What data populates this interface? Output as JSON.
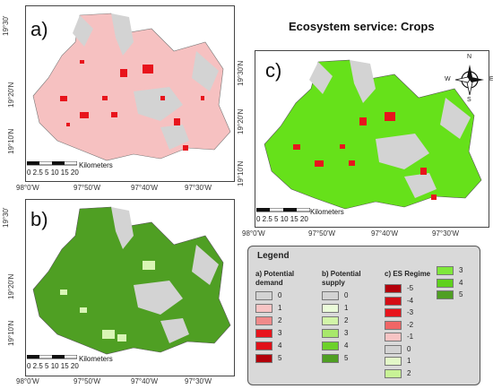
{
  "title": "Ecosystem service: Crops",
  "panels": {
    "a": {
      "label": "a)",
      "lat_ticks": [
        "19°30'",
        "19°20'N",
        "19°10'N"
      ],
      "lon_ticks": [
        "98°0'W",
        "97°50'W",
        "97°40'W",
        "97°30'W"
      ]
    },
    "b": {
      "label": "b)",
      "lat_ticks": [
        "19°30'",
        "19°20'N",
        "19°10'N"
      ],
      "lon_ticks": [
        "98°0'W",
        "97°50'W",
        "97°40'W",
        "97°30'W"
      ]
    },
    "c": {
      "label": "c)",
      "lat_ticks": [
        "19°30'N",
        "19°20'N",
        "19°10'N"
      ],
      "lon_ticks": [
        "98°0'W",
        "97°50'W",
        "97°40'W",
        "97°30'W"
      ]
    }
  },
  "scalebar": {
    "ticks": "0 2.5 5    10    15    20",
    "unit": "Kilometers"
  },
  "north_arrow": {
    "n": "N",
    "s": "S",
    "e": "E",
    "w": "W"
  },
  "colors": {
    "map_gray": "#d3d3d3",
    "demand_fill": "#f6c1c1",
    "demand_hot": "#e8141c",
    "supply_fill": "#4f9f23",
    "supply_light": "#d9f5b5",
    "regime_fill": "#66e11a",
    "regime_hot": "#e8141c"
  },
  "legend": {
    "title": "Legend",
    "demand": {
      "header": "a) Potential demand",
      "items": [
        {
          "label": "0",
          "color": "#d3d3d3"
        },
        {
          "label": "1",
          "color": "#f7c4c4"
        },
        {
          "label": "2",
          "color": "#f08a8a"
        },
        {
          "label": "3",
          "color": "#e8141c"
        },
        {
          "label": "4",
          "color": "#e01018"
        },
        {
          "label": "5",
          "color": "#b3000b"
        }
      ]
    },
    "supply": {
      "header": "b) Potential supply",
      "items": [
        {
          "label": "0",
          "color": "#d3d3d3"
        },
        {
          "label": "1",
          "color": "#ebfbd9"
        },
        {
          "label": "2",
          "color": "#d2f5a8"
        },
        {
          "label": "3",
          "color": "#a8e86b"
        },
        {
          "label": "4",
          "color": "#6cd12a"
        },
        {
          "label": "5",
          "color": "#4f9f23"
        }
      ]
    },
    "regime": {
      "header": "c) ES Regime",
      "items": [
        {
          "label": "-5",
          "color": "#b3000b"
        },
        {
          "label": "-4",
          "color": "#d40d15"
        },
        {
          "label": "-3",
          "color": "#e8141c"
        },
        {
          "label": "-2",
          "color": "#f06666"
        },
        {
          "label": "-1",
          "color": "#f7c4c4"
        },
        {
          "label": "0",
          "color": "#d3d3d3"
        },
        {
          "label": "1",
          "color": "#e3f8c8"
        },
        {
          "label": "2",
          "color": "#c8f296"
        }
      ],
      "items2": [
        {
          "label": "3",
          "color": "#7fe83a"
        },
        {
          "label": "4",
          "color": "#5fd11c"
        },
        {
          "label": "5",
          "color": "#4f9f23"
        }
      ]
    }
  }
}
